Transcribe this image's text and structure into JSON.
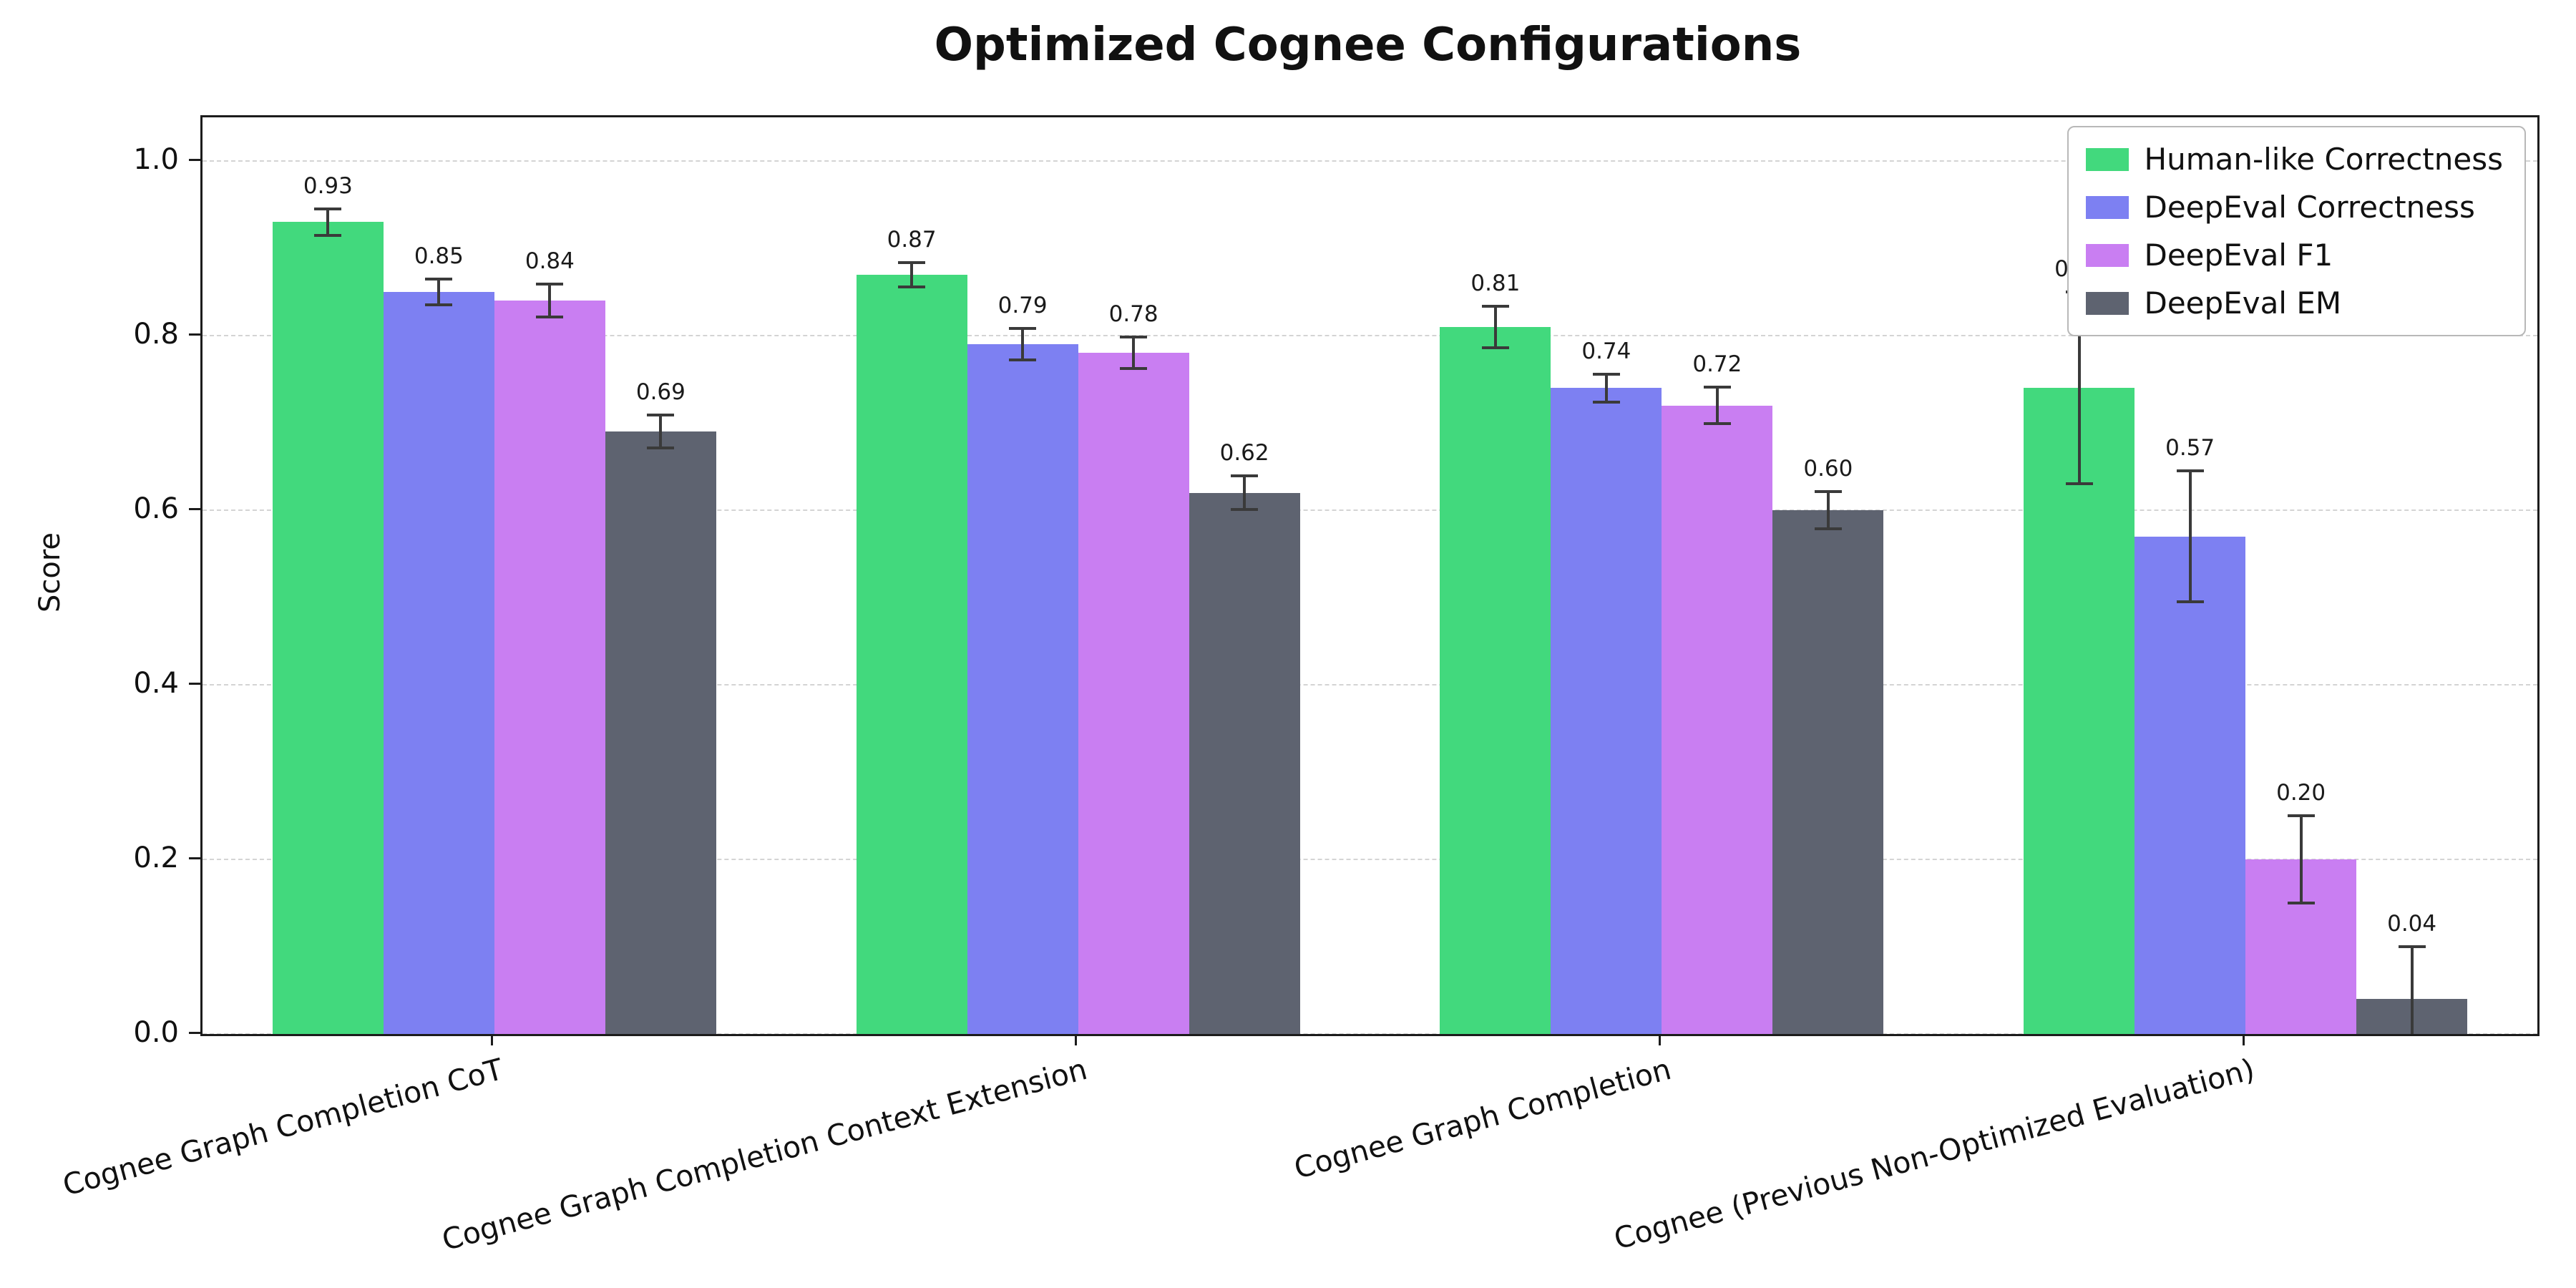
{
  "figure": {
    "background": "#ffffff"
  },
  "chart_data": {
    "type": "bar",
    "title": "Optimized Cognee Configurations",
    "xlabel": "",
    "ylabel": "Score",
    "ylim": [
      0,
      1.05
    ],
    "yticks": [
      0.0,
      0.2,
      0.4,
      0.6,
      0.8,
      1.0
    ],
    "grid": true,
    "grid_style": "dashed",
    "legend_position": "upper right",
    "categories": [
      "Cognee Graph Completion CoT",
      "Cognee Graph Completion Context Extension",
      "Cognee Graph Completion",
      "Cognee (Previous Non-Optimized Evaluation)"
    ],
    "series": [
      {
        "name": "Human-like Correctness",
        "color": "#42d97d",
        "values": [
          0.93,
          0.87,
          0.81,
          0.74
        ],
        "errors": [
          0.015,
          0.014,
          0.024,
          0.11
        ]
      },
      {
        "name": "DeepEval Correctness",
        "color": "#7d80f2",
        "values": [
          0.85,
          0.79,
          0.74,
          0.57
        ],
        "errors": [
          0.015,
          0.018,
          0.016,
          0.075
        ]
      },
      {
        "name": "DeepEval F1",
        "color": "#c97ef2",
        "values": [
          0.84,
          0.78,
          0.72,
          0.2
        ],
        "errors": [
          0.019,
          0.018,
          0.021,
          0.05
        ]
      },
      {
        "name": "DeepEval EM",
        "color": "#5e6370",
        "values": [
          0.69,
          0.62,
          0.6,
          0.04
        ],
        "errors": [
          0.019,
          0.019,
          0.021,
          0.06
        ]
      }
    ],
    "errorbar_color": "#3a3a3a",
    "value_label_format": "0.00"
  }
}
